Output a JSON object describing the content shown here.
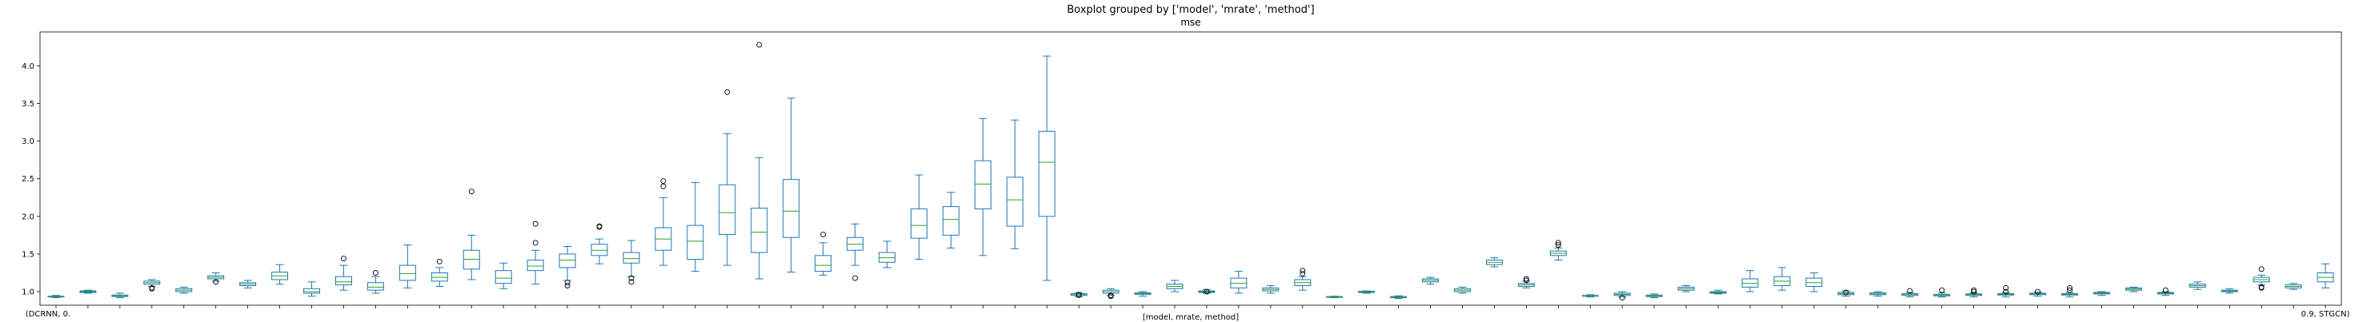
{
  "chart_data": {
    "type": "boxplot",
    "suptitle": "Boxplot grouped by ['model', 'mrate', 'method']",
    "title": "mse",
    "xlabel": "[model, mrate, method]",
    "ylabel": "",
    "ylim": [
      0.82,
      4.45
    ],
    "yticks": [
      "1.0",
      "1.5",
      "2.0",
      "2.5",
      "3.0",
      "3.5",
      "4.0"
    ],
    "grid": false,
    "box_color": "#1f77b4",
    "median_color": "#2ca02c",
    "first_label": "(DCRNN, 0.",
    "last_label": "0.9, STGCN)",
    "boxes": [
      {
        "label": "",
        "wl": 0.92,
        "q1": 0.93,
        "med": 0.935,
        "q3": 0.94,
        "wh": 0.95,
        "outliers": []
      },
      {
        "label": "",
        "wl": 0.98,
        "q1": 0.99,
        "med": 1.0,
        "q3": 1.01,
        "wh": 1.02,
        "outliers": []
      },
      {
        "label": "",
        "wl": 0.92,
        "q1": 0.935,
        "med": 0.945,
        "q3": 0.955,
        "wh": 0.98,
        "outliers": []
      },
      {
        "label": "",
        "wl": 1.07,
        "q1": 1.1,
        "med": 1.12,
        "q3": 1.14,
        "wh": 1.16,
        "outliers": [
          1.05,
          1.04
        ]
      },
      {
        "label": "",
        "wl": 0.98,
        "q1": 1.0,
        "med": 1.02,
        "q3": 1.04,
        "wh": 1.06,
        "outliers": []
      },
      {
        "label": "",
        "wl": 1.14,
        "q1": 1.17,
        "med": 1.19,
        "q3": 1.21,
        "wh": 1.25,
        "outliers": [
          1.13
        ]
      },
      {
        "label": "",
        "wl": 1.05,
        "q1": 1.08,
        "med": 1.1,
        "q3": 1.12,
        "wh": 1.15,
        "outliers": []
      },
      {
        "label": "",
        "wl": 1.1,
        "q1": 1.16,
        "med": 1.21,
        "q3": 1.26,
        "wh": 1.36,
        "outliers": []
      },
      {
        "label": "",
        "wl": 0.94,
        "q1": 0.98,
        "med": 1.0,
        "q3": 1.04,
        "wh": 1.13,
        "outliers": []
      },
      {
        "label": "",
        "wl": 1.02,
        "q1": 1.09,
        "med": 1.13,
        "q3": 1.2,
        "wh": 1.35,
        "outliers": [
          1.44
        ]
      },
      {
        "label": "",
        "wl": 0.98,
        "q1": 1.02,
        "med": 1.06,
        "q3": 1.12,
        "wh": 1.2,
        "outliers": [
          1.25
        ]
      },
      {
        "label": "",
        "wl": 1.05,
        "q1": 1.15,
        "med": 1.24,
        "q3": 1.35,
        "wh": 1.62,
        "outliers": []
      },
      {
        "label": "",
        "wl": 1.07,
        "q1": 1.14,
        "med": 1.19,
        "q3": 1.25,
        "wh": 1.32,
        "outliers": [
          1.4
        ]
      },
      {
        "label": "",
        "wl": 1.16,
        "q1": 1.3,
        "med": 1.43,
        "q3": 1.55,
        "wh": 1.75,
        "outliers": [
          2.33
        ]
      },
      {
        "label": "",
        "wl": 1.04,
        "q1": 1.11,
        "med": 1.18,
        "q3": 1.28,
        "wh": 1.38,
        "outliers": []
      },
      {
        "label": "",
        "wl": 1.1,
        "q1": 1.28,
        "med": 1.34,
        "q3": 1.42,
        "wh": 1.55,
        "outliers": [
          1.9,
          1.65
        ]
      },
      {
        "label": "",
        "wl": 1.15,
        "q1": 1.32,
        "med": 1.42,
        "q3": 1.5,
        "wh": 1.6,
        "outliers": [
          1.12,
          1.08
        ]
      },
      {
        "label": "",
        "wl": 1.37,
        "q1": 1.48,
        "med": 1.55,
        "q3": 1.63,
        "wh": 1.7,
        "outliers": [
          1.87,
          1.86
        ]
      },
      {
        "label": "",
        "wl": 1.2,
        "q1": 1.38,
        "med": 1.44,
        "q3": 1.52,
        "wh": 1.68,
        "outliers": [
          1.18,
          1.13
        ]
      },
      {
        "label": "",
        "wl": 1.35,
        "q1": 1.55,
        "med": 1.7,
        "q3": 1.85,
        "wh": 2.25,
        "outliers": [
          2.47,
          2.4
        ]
      },
      {
        "label": "",
        "wl": 1.27,
        "q1": 1.43,
        "med": 1.67,
        "q3": 1.88,
        "wh": 2.45,
        "outliers": []
      },
      {
        "label": "",
        "wl": 1.35,
        "q1": 1.76,
        "med": 2.05,
        "q3": 2.42,
        "wh": 3.1,
        "outliers": [
          3.65
        ]
      },
      {
        "label": "",
        "wl": 1.17,
        "q1": 1.52,
        "med": 1.79,
        "q3": 2.11,
        "wh": 2.78,
        "outliers": [
          4.28
        ]
      },
      {
        "label": "",
        "wl": 1.26,
        "q1": 1.72,
        "med": 2.07,
        "q3": 2.49,
        "wh": 3.57,
        "outliers": []
      },
      {
        "label": "",
        "wl": 1.22,
        "q1": 1.27,
        "med": 1.35,
        "q3": 1.48,
        "wh": 1.65,
        "outliers": [
          1.76
        ]
      },
      {
        "label": "",
        "wl": 1.35,
        "q1": 1.55,
        "med": 1.63,
        "q3": 1.72,
        "wh": 1.9,
        "outliers": [
          1.18
        ]
      },
      {
        "label": "",
        "wl": 1.32,
        "q1": 1.39,
        "med": 1.45,
        "q3": 1.52,
        "wh": 1.67,
        "outliers": []
      },
      {
        "label": "",
        "wl": 1.43,
        "q1": 1.71,
        "med": 1.88,
        "q3": 2.1,
        "wh": 2.55,
        "outliers": []
      },
      {
        "label": "",
        "wl": 1.58,
        "q1": 1.75,
        "med": 1.96,
        "q3": 2.13,
        "wh": 2.32,
        "outliers": []
      },
      {
        "label": "",
        "wl": 1.48,
        "q1": 2.1,
        "med": 2.43,
        "q3": 2.74,
        "wh": 3.3,
        "outliers": []
      },
      {
        "label": "",
        "wl": 1.57,
        "q1": 1.87,
        "med": 2.22,
        "q3": 2.52,
        "wh": 3.28,
        "outliers": []
      },
      {
        "label": "",
        "wl": 1.15,
        "q1": 2.0,
        "med": 2.72,
        "q3": 3.13,
        "wh": 4.13,
        "outliers": []
      },
      {
        "label": "",
        "wl": 0.93,
        "q1": 0.95,
        "med": 0.96,
        "q3": 0.975,
        "wh": 0.99,
        "outliers": [
          0.955,
          0.96
        ]
      },
      {
        "label": "",
        "wl": 0.95,
        "q1": 0.98,
        "med": 1.0,
        "q3": 1.02,
        "wh": 1.04,
        "outliers": [
          0.95,
          0.94
        ]
      },
      {
        "label": "",
        "wl": 0.94,
        "q1": 0.965,
        "med": 0.975,
        "q3": 0.985,
        "wh": 1.0,
        "outliers": []
      },
      {
        "label": "",
        "wl": 1.0,
        "q1": 1.04,
        "med": 1.07,
        "q3": 1.1,
        "wh": 1.15,
        "outliers": []
      },
      {
        "label": "",
        "wl": 0.98,
        "q1": 0.99,
        "med": 1.0,
        "q3": 1.01,
        "wh": 1.03,
        "outliers": [
          1.0
        ]
      },
      {
        "label": "",
        "wl": 0.98,
        "q1": 1.05,
        "med": 1.11,
        "q3": 1.18,
        "wh": 1.27,
        "outliers": []
      },
      {
        "label": "",
        "wl": 0.98,
        "q1": 1.01,
        "med": 1.03,
        "q3": 1.05,
        "wh": 1.08,
        "outliers": []
      },
      {
        "label": "",
        "wl": 1.02,
        "q1": 1.08,
        "med": 1.12,
        "q3": 1.16,
        "wh": 1.2,
        "outliers": [
          1.28,
          1.24
        ]
      },
      {
        "label": "",
        "wl": 0.92,
        "q1": 0.925,
        "med": 0.93,
        "q3": 0.935,
        "wh": 0.94,
        "outliers": []
      },
      {
        "label": "",
        "wl": 0.98,
        "q1": 0.99,
        "med": 1.0,
        "q3": 1.005,
        "wh": 1.01,
        "outliers": []
      },
      {
        "label": "",
        "wl": 0.91,
        "q1": 0.92,
        "med": 0.93,
        "q3": 0.935,
        "wh": 0.945,
        "outliers": []
      },
      {
        "label": "",
        "wl": 1.1,
        "q1": 1.13,
        "med": 1.15,
        "q3": 1.17,
        "wh": 1.19,
        "outliers": []
      },
      {
        "label": "",
        "wl": 0.98,
        "q1": 1.0,
        "med": 1.02,
        "q3": 1.04,
        "wh": 1.06,
        "outliers": []
      },
      {
        "label": "",
        "wl": 1.33,
        "q1": 1.36,
        "med": 1.39,
        "q3": 1.42,
        "wh": 1.45,
        "outliers": []
      },
      {
        "label": "",
        "wl": 1.05,
        "q1": 1.07,
        "med": 1.09,
        "q3": 1.11,
        "wh": 1.14,
        "outliers": [
          1.15,
          1.17
        ]
      },
      {
        "label": "",
        "wl": 1.42,
        "q1": 1.48,
        "med": 1.51,
        "q3": 1.54,
        "wh": 1.58,
        "outliers": [
          1.65,
          1.62
        ]
      },
      {
        "label": "",
        "wl": 0.93,
        "q1": 0.94,
        "med": 0.945,
        "q3": 0.95,
        "wh": 0.96,
        "outliers": []
      },
      {
        "label": "",
        "wl": 0.93,
        "q1": 0.95,
        "med": 0.965,
        "q3": 0.98,
        "wh": 1.0,
        "outliers": [
          0.92
        ]
      },
      {
        "label": "",
        "wl": 0.92,
        "q1": 0.935,
        "med": 0.945,
        "q3": 0.955,
        "wh": 0.97,
        "outliers": []
      },
      {
        "label": "",
        "wl": 1.0,
        "q1": 1.02,
        "med": 1.04,
        "q3": 1.06,
        "wh": 1.08,
        "outliers": []
      },
      {
        "label": "",
        "wl": 0.97,
        "q1": 0.98,
        "med": 0.99,
        "q3": 1.0,
        "wh": 1.02,
        "outliers": []
      },
      {
        "label": "",
        "wl": 1.0,
        "q1": 1.06,
        "med": 1.11,
        "q3": 1.17,
        "wh": 1.28,
        "outliers": []
      },
      {
        "label": "",
        "wl": 1.02,
        "q1": 1.08,
        "med": 1.14,
        "q3": 1.2,
        "wh": 1.32,
        "outliers": []
      },
      {
        "label": "",
        "wl": 1.0,
        "q1": 1.07,
        "med": 1.12,
        "q3": 1.18,
        "wh": 1.25,
        "outliers": []
      },
      {
        "label": "",
        "wl": 0.94,
        "q1": 0.96,
        "med": 0.975,
        "q3": 0.99,
        "wh": 1.01,
        "outliers": [
          0.99
        ]
      },
      {
        "label": "",
        "wl": 0.94,
        "q1": 0.96,
        "med": 0.97,
        "q3": 0.985,
        "wh": 1.0,
        "outliers": []
      },
      {
        "label": "",
        "wl": 0.93,
        "q1": 0.95,
        "med": 0.96,
        "q3": 0.975,
        "wh": 0.99,
        "outliers": [
          1.01
        ]
      },
      {
        "label": "",
        "wl": 0.93,
        "q1": 0.945,
        "med": 0.955,
        "q3": 0.965,
        "wh": 0.985,
        "outliers": [
          1.02
        ]
      },
      {
        "label": "",
        "wl": 0.93,
        "q1": 0.95,
        "med": 0.96,
        "q3": 0.97,
        "wh": 0.985,
        "outliers": [
          1.0,
          1.02
        ]
      },
      {
        "label": "",
        "wl": 0.93,
        "q1": 0.955,
        "med": 0.965,
        "q3": 0.975,
        "wh": 0.99,
        "outliers": [
          1.05,
          1.0
        ]
      },
      {
        "label": "",
        "wl": 0.94,
        "q1": 0.96,
        "med": 0.97,
        "q3": 0.98,
        "wh": 0.995,
        "outliers": [
          1.0
        ]
      },
      {
        "label": "",
        "wl": 0.93,
        "q1": 0.955,
        "med": 0.965,
        "q3": 0.975,
        "wh": 0.99,
        "outliers": [
          1.05,
          1.02
        ]
      },
      {
        "label": "",
        "wl": 0.95,
        "q1": 0.97,
        "med": 0.98,
        "q3": 0.99,
        "wh": 1.0,
        "outliers": []
      },
      {
        "label": "",
        "wl": 1.0,
        "q1": 1.02,
        "med": 1.035,
        "q3": 1.05,
        "wh": 1.06,
        "outliers": []
      },
      {
        "label": "",
        "wl": 0.95,
        "q1": 0.97,
        "med": 0.98,
        "q3": 0.99,
        "wh": 1.0,
        "outliers": [
          1.02
        ]
      },
      {
        "label": "",
        "wl": 1.03,
        "q1": 1.06,
        "med": 1.08,
        "q3": 1.1,
        "wh": 1.13,
        "outliers": []
      },
      {
        "label": "",
        "wl": 0.98,
        "q1": 1.0,
        "med": 1.01,
        "q3": 1.02,
        "wh": 1.04,
        "outliers": []
      },
      {
        "label": "",
        "wl": 1.09,
        "q1": 1.13,
        "med": 1.16,
        "q3": 1.19,
        "wh": 1.22,
        "outliers": [
          1.3,
          1.06,
          1.05
        ]
      },
      {
        "label": "",
        "wl": 1.03,
        "q1": 1.05,
        "med": 1.07,
        "q3": 1.09,
        "wh": 1.11,
        "outliers": []
      },
      {
        "label": "",
        "wl": 1.05,
        "q1": 1.13,
        "med": 1.19,
        "q3": 1.25,
        "wh": 1.37,
        "outliers": []
      }
    ]
  }
}
